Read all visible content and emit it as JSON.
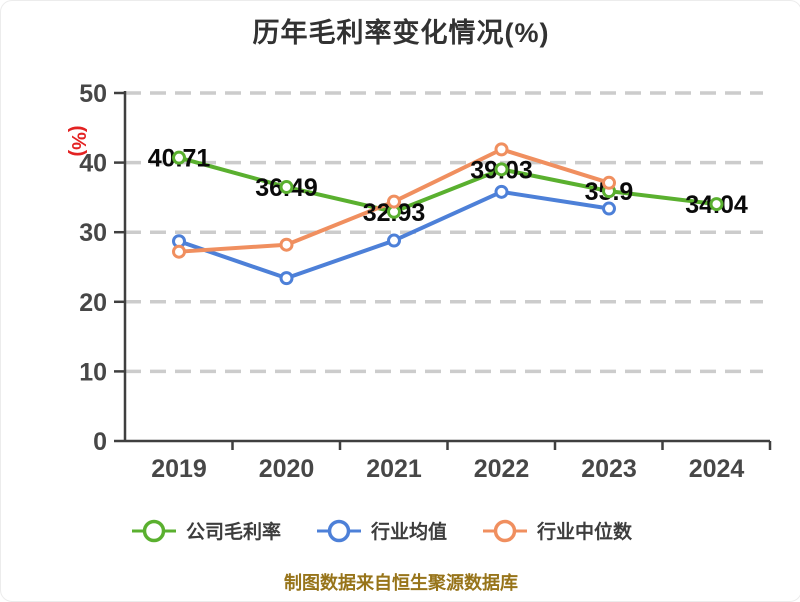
{
  "title": "历年毛利率变化情况(%)",
  "y_axis_label": "(%)",
  "footer": "制图数据来自恒生聚源数据库",
  "colors": {
    "title_text": "#323232",
    "axis": "#3f3f3f",
    "tick_text": "#474747",
    "grid": "#cccccc",
    "point_label_text": "#0a0a0a",
    "y_unit_red": "#e32222",
    "footer_gold": "#97741a"
  },
  "chart_data": {
    "type": "line",
    "title": "历年毛利率变化情况(%)",
    "x": [
      "2019",
      "2020",
      "2021",
      "2022",
      "2023",
      "2024"
    ],
    "ylabel": "(%)",
    "ylim": [
      0,
      50
    ],
    "y_ticks": [
      0,
      10,
      20,
      30,
      40,
      50
    ],
    "grid": "horizontal-dashed",
    "legend_position": "bottom",
    "series": [
      {
        "key": "company",
        "name": "公司毛利率",
        "color": "#5ab02f",
        "x": [
          "2019",
          "2020",
          "2021",
          "2022",
          "2023",
          "2024"
        ],
        "values": [
          40.71,
          36.49,
          32.93,
          39.03,
          35.9,
          34.04
        ],
        "point_labels": [
          "40.71",
          "36.49",
          "32.93",
          "39.03",
          "35.9",
          "34.04"
        ]
      },
      {
        "key": "industry-avg",
        "name": "行业均值",
        "color": "#4d80d8",
        "x": [
          "2019",
          "2020",
          "2021",
          "2022",
          "2023"
        ],
        "values": [
          28.7,
          23.4,
          28.8,
          35.8,
          33.4
        ]
      },
      {
        "key": "industry-median",
        "name": "行业中位数",
        "color": "#f08f5f",
        "x": [
          "2019",
          "2020",
          "2021",
          "2022",
          "2023"
        ],
        "values": [
          27.2,
          28.2,
          34.4,
          41.9,
          37.1
        ]
      }
    ],
    "source_note": "制图数据来自恒生聚源数据库"
  }
}
